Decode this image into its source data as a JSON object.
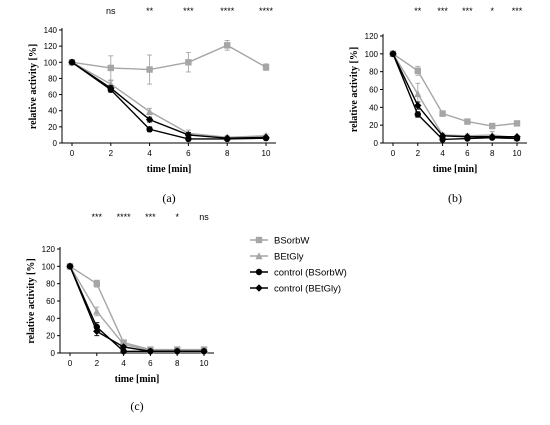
{
  "legend": [
    {
      "name": "BSorbW",
      "color": "#a6a6a6",
      "marker": "square"
    },
    {
      "name": "BEtGly",
      "color": "#a6a6a6",
      "marker": "triangle"
    },
    {
      "name": "control (BSorbW)",
      "color": "#000000",
      "marker": "circle"
    },
    {
      "name": "control (BEtGly)",
      "color": "#000000",
      "marker": "diamond"
    }
  ],
  "chart_data": [
    {
      "type": "line",
      "panel_label": "(a)",
      "xlabel": "time [min]",
      "ylabel": "relative activity [%]",
      "x": [
        0,
        2,
        4,
        6,
        8,
        10
      ],
      "ylim": [
        0,
        140
      ],
      "yticks": [
        0,
        20,
        40,
        60,
        80,
        100,
        120,
        140
      ],
      "significance": [
        {
          "x": 2,
          "label": "ns"
        },
        {
          "x": 4,
          "label": "**"
        },
        {
          "x": 6,
          "label": "***"
        },
        {
          "x": 8,
          "label": "****"
        },
        {
          "x": 10,
          "label": "****"
        }
      ],
      "series": [
        {
          "name": "BSorbW",
          "values": [
            100,
            93,
            91,
            100,
            121,
            94
          ],
          "errors": [
            0,
            15,
            18,
            12,
            6,
            4
          ]
        },
        {
          "name": "BEtGly",
          "values": [
            100,
            73,
            39,
            12,
            7,
            9
          ],
          "errors": [
            0,
            4,
            4,
            4,
            2,
            2
          ]
        },
        {
          "name": "control (BSorbW)",
          "values": [
            100,
            66,
            17,
            5,
            5,
            6
          ],
          "errors": [
            0,
            3,
            3,
            2,
            1,
            1
          ]
        },
        {
          "name": "control (BEtGly)",
          "values": [
            100,
            68,
            29,
            10,
            6,
            7
          ],
          "errors": [
            0,
            3,
            3,
            3,
            1,
            1
          ]
        }
      ]
    },
    {
      "type": "line",
      "panel_label": "(b)",
      "xlabel": "time [min]",
      "ylabel": "relative activity [%]",
      "x": [
        0,
        2,
        4,
        6,
        8,
        10
      ],
      "ylim": [
        0,
        120
      ],
      "yticks": [
        0,
        20,
        40,
        60,
        80,
        100,
        120
      ],
      "significance": [
        {
          "x": 2,
          "label": "**"
        },
        {
          "x": 4,
          "label": "***"
        },
        {
          "x": 6,
          "label": "***"
        },
        {
          "x": 8,
          "label": "*"
        },
        {
          "x": 10,
          "label": "***"
        }
      ],
      "series": [
        {
          "name": "BSorbW",
          "values": [
            100,
            81,
            33,
            24,
            19,
            22
          ],
          "errors": [
            0,
            5,
            3,
            2,
            3,
            2
          ]
        },
        {
          "name": "BEtGly",
          "values": [
            100,
            55,
            9,
            8,
            9,
            6
          ],
          "errors": [
            0,
            12,
            2,
            2,
            4,
            2
          ]
        },
        {
          "name": "control (BSorbW)",
          "values": [
            100,
            32,
            4,
            5,
            6,
            5
          ],
          "errors": [
            0,
            3,
            1,
            1,
            1,
            1
          ]
        },
        {
          "name": "control (BEtGly)",
          "values": [
            100,
            42,
            8,
            7,
            7,
            7
          ],
          "errors": [
            0,
            4,
            1,
            1,
            1,
            1
          ]
        }
      ]
    },
    {
      "type": "line",
      "panel_label": "(c)",
      "xlabel": "time [min]",
      "ylabel": "relative activity [%]",
      "x": [
        0,
        2,
        4,
        6,
        8,
        10
      ],
      "ylim": [
        0,
        120
      ],
      "yticks": [
        0,
        20,
        40,
        60,
        80,
        100,
        120
      ],
      "significance": [
        {
          "x": 2,
          "label": "***"
        },
        {
          "x": 4,
          "label": "****"
        },
        {
          "x": 6,
          "label": "***"
        },
        {
          "x": 8,
          "label": "*"
        },
        {
          "x": 10,
          "label": "ns"
        }
      ],
      "series": [
        {
          "name": "BSorbW",
          "values": [
            100,
            80,
            12,
            4,
            4,
            4
          ],
          "errors": [
            0,
            4,
            2,
            1,
            1,
            1
          ]
        },
        {
          "name": "BEtGly",
          "values": [
            100,
            48,
            10,
            3,
            3,
            3
          ],
          "errors": [
            0,
            5,
            2,
            1,
            1,
            1
          ]
        },
        {
          "name": "control (BSorbW)",
          "values": [
            100,
            30,
            2,
            2,
            2,
            2
          ],
          "errors": [
            0,
            5,
            1,
            1,
            1,
            1
          ]
        },
        {
          "name": "control (BEtGly)",
          "values": [
            100,
            25,
            7,
            2,
            2,
            2
          ],
          "errors": [
            0,
            5,
            1,
            1,
            1,
            1
          ]
        }
      ]
    }
  ]
}
